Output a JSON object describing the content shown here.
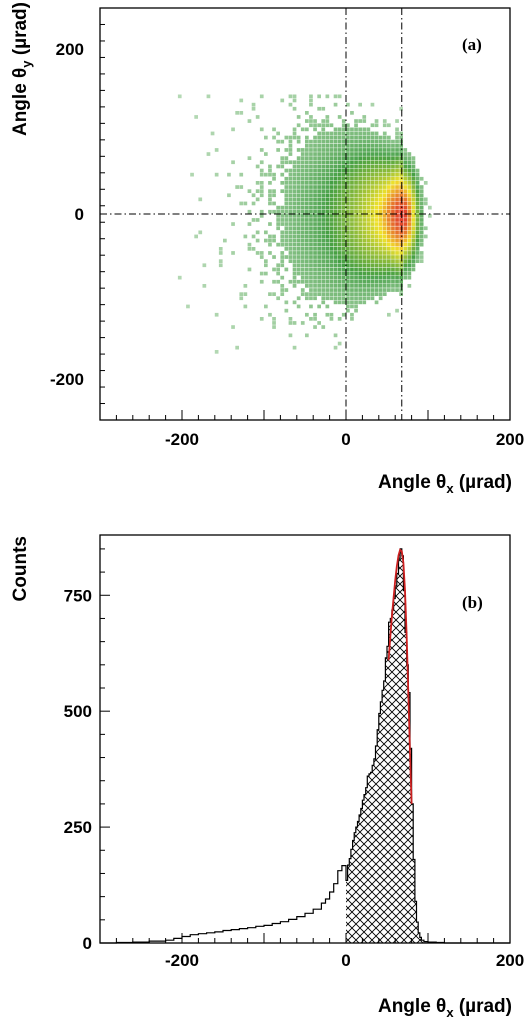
{
  "chart_data": [
    {
      "type": "heatmap",
      "panel_label": "(a)",
      "xlabel": "Angle θ",
      "xlabel_sub": "x",
      "xlabel_unit": " (µrad)",
      "ylabel": "Angle θ",
      "ylabel_sub": "y",
      "ylabel_unit": " (µrad)",
      "xlim": [
        -300,
        200
      ],
      "ylim": [
        -250,
        250
      ],
      "x_ticks": [
        -200,
        0,
        200
      ],
      "y_ticks": [
        -200,
        0,
        200
      ],
      "reference_lines": {
        "x": [
          0,
          68
        ],
        "y": [
          0
        ]
      },
      "peak": {
        "x": 68,
        "y": -5
      },
      "colors": {
        "low": "#3a9a3a",
        "mid": "#f0e020",
        "high": "#e03020"
      }
    },
    {
      "type": "bar",
      "panel_label": "(b)",
      "xlabel": "Angle θ",
      "xlabel_sub": "x",
      "xlabel_unit": " (µrad)",
      "ylabel": "Counts",
      "xlim": [
        -300,
        200
      ],
      "ylim": [
        0,
        880
      ],
      "x_ticks": [
        -200,
        0,
        200
      ],
      "y_ticks": [
        0,
        250,
        500,
        750
      ],
      "hatched_range": [
        0,
        95
      ],
      "fit_color": "#cc2020",
      "histogram": {
        "x": [
          -300,
          -280,
          -260,
          -240,
          -220,
          -210,
          -200,
          -190,
          -180,
          -170,
          -160,
          -150,
          -140,
          -130,
          -120,
          -110,
          -100,
          -90,
          -80,
          -70,
          -60,
          -50,
          -40,
          -30,
          -25,
          -20,
          -15,
          -10,
          -5,
          0,
          2,
          4,
          6,
          8,
          10,
          12,
          14,
          16,
          18,
          20,
          22,
          24,
          26,
          28,
          30,
          32,
          34,
          36,
          38,
          40,
          42,
          44,
          46,
          48,
          50,
          52,
          54,
          56,
          58,
          60,
          62,
          64,
          66,
          68,
          70,
          72,
          74,
          76,
          78,
          80,
          82,
          84,
          86,
          88,
          90,
          92,
          95,
          100,
          110,
          120,
          140,
          160,
          180,
          200
        ],
        "counts": [
          0,
          1,
          2,
          4,
          6,
          10,
          14,
          18,
          20,
          22,
          24,
          27,
          29,
          31,
          33,
          36,
          38,
          42,
          46,
          51,
          57,
          64,
          73,
          86,
          95,
          110,
          128,
          156,
          167,
          135,
          168,
          182,
          202,
          221,
          238,
          250,
          262,
          276,
          290,
          308,
          320,
          335,
          360,
          365,
          368,
          383,
          397,
          425,
          460,
          495,
          520,
          545,
          565,
          615,
          640,
          692,
          700,
          718,
          743,
          770,
          797,
          830,
          850,
          835,
          760,
          670,
          600,
          540,
          420,
          300,
          180,
          90,
          45,
          22,
          12,
          6,
          3,
          2,
          1,
          0,
          0,
          0,
          0,
          0
        ]
      },
      "fit": {
        "x": [
          52,
          54,
          56,
          58,
          60,
          62,
          64,
          66,
          68,
          70,
          72,
          74,
          76,
          78,
          80
        ],
        "y": [
          610,
          660,
          705,
          745,
          782,
          812,
          836,
          848,
          845,
          820,
          760,
          660,
          540,
          410,
          300
        ]
      }
    }
  ]
}
